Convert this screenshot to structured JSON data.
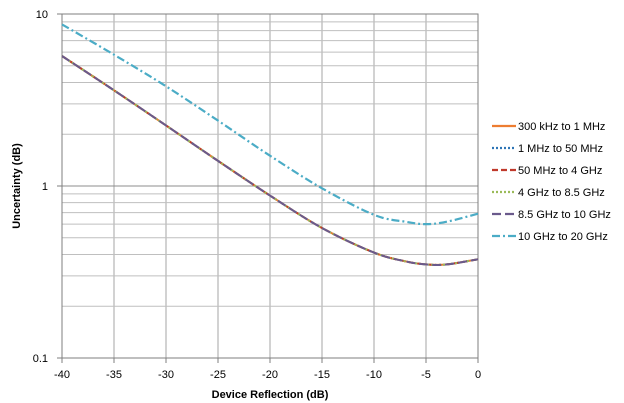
{
  "chart_data": {
    "type": "line",
    "title": "",
    "xlabel": "Device Reflection (dB)",
    "ylabel": "Uncertainty (dB)",
    "xlim": [
      -40,
      0
    ],
    "ylim": [
      0.1,
      10
    ],
    "yscale": "log",
    "grid": true,
    "legend_position": "right",
    "x_ticks": [
      -40,
      -35,
      -30,
      -25,
      -20,
      -15,
      -10,
      -5,
      0
    ],
    "x_tick_labels": [
      "-40",
      "-35",
      "-30",
      "-25",
      "-20",
      "-15",
      "-10",
      "-5",
      "0"
    ],
    "y_ticks": [
      0.1,
      1,
      10
    ],
    "y_tick_labels": [
      "0.1",
      "1",
      "10"
    ],
    "x": [
      -40,
      -35,
      -30,
      -25,
      -20,
      -15,
      -10,
      -7,
      -5,
      -3,
      0
    ],
    "series": [
      {
        "name": "300 kHz to 1 MHz",
        "color": "#ED7D31",
        "dash": "solid",
        "values": [
          5.7,
          3.6,
          2.25,
          1.4,
          0.88,
          0.57,
          0.41,
          0.365,
          0.35,
          0.35,
          0.375
        ]
      },
      {
        "name": "1 MHz to 50 MHz",
        "color": "#2E75B6",
        "dash": "dot",
        "values": [
          5.7,
          3.6,
          2.25,
          1.4,
          0.88,
          0.57,
          0.41,
          0.365,
          0.35,
          0.35,
          0.375
        ]
      },
      {
        "name": "50 MHz to 4 GHz",
        "color": "#C0392B",
        "dash": "dash",
        "values": [
          5.7,
          3.6,
          2.25,
          1.4,
          0.88,
          0.57,
          0.41,
          0.365,
          0.35,
          0.35,
          0.375
        ]
      },
      {
        "name": "4 GHz to 8.5 GHz",
        "color": "#9BBB59",
        "dash": "dot",
        "values": [
          5.7,
          3.6,
          2.25,
          1.4,
          0.88,
          0.57,
          0.41,
          0.365,
          0.35,
          0.35,
          0.375
        ]
      },
      {
        "name": "8.5 GHz to 10 GHz",
        "color": "#6A5A8C",
        "dash": "longdash",
        "values": [
          5.7,
          3.6,
          2.25,
          1.4,
          0.88,
          0.57,
          0.41,
          0.365,
          0.35,
          0.35,
          0.375
        ]
      },
      {
        "name": "10 GHz to 20 GHz",
        "color": "#4BACC6",
        "dash": "dashdot",
        "values": [
          8.7,
          5.8,
          3.8,
          2.4,
          1.5,
          0.97,
          0.68,
          0.62,
          0.6,
          0.62,
          0.69
        ]
      }
    ]
  }
}
